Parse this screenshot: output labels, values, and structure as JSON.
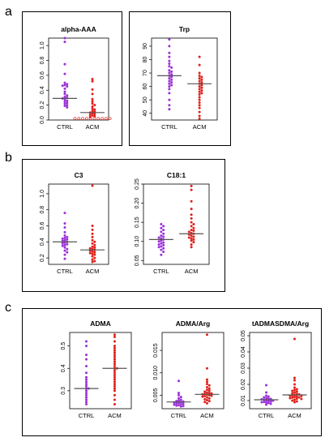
{
  "panels": [
    {
      "letter": "a"
    },
    {
      "letter": "b"
    },
    {
      "letter": "c"
    }
  ],
  "chart_data": [
    {
      "type": "scatter",
      "panel": "a",
      "title": "alpha-AAA",
      "categories": [
        "CTRL",
        "ACM"
      ],
      "ylim": [
        0,
        1.1
      ],
      "yticks": [
        0.0,
        0.2,
        0.4,
        0.6,
        0.8,
        1.0
      ],
      "yticklabels": [
        "0.0",
        "0.2",
        "0.4",
        "0.6",
        "0.8",
        "1.0"
      ],
      "medians": [
        0.29,
        0.1
      ],
      "series": [
        {
          "category": "CTRL",
          "color": "#9b30d9",
          "hollow": false,
          "values": [
            1.1,
            1.05,
            0.75,
            0.62,
            0.5,
            0.48,
            0.47,
            0.46,
            0.45,
            0.42,
            0.38,
            0.35,
            0.33,
            0.31,
            0.3,
            0.29,
            0.28,
            0.26,
            0.25,
            0.23,
            0.22,
            0.2,
            0.19,
            0.17
          ]
        },
        {
          "category": "ACM",
          "color": "#e0201b",
          "hollow": false,
          "values": [
            0.55,
            0.52,
            0.41,
            0.35,
            0.28,
            0.25,
            0.22,
            0.2,
            0.18,
            0.15,
            0.14,
            0.12,
            0.11,
            0.1,
            0.09,
            0.08,
            0.07,
            0.06,
            0.05,
            0.04
          ]
        },
        {
          "category": "ACM",
          "color": "#e0201b",
          "hollow": true,
          "values": [
            0.02,
            0.02,
            0.02,
            0.02,
            0.02,
            0.02,
            0.02,
            0.02,
            0.02,
            0.02
          ]
        }
      ]
    },
    {
      "type": "scatter",
      "panel": "a",
      "title": "Trp",
      "categories": [
        "CTRL",
        "ACM"
      ],
      "ylim": [
        35,
        96
      ],
      "yticks": [
        40,
        50,
        60,
        70,
        80,
        90
      ],
      "yticklabels": [
        "40",
        "50",
        "60",
        "70",
        "80",
        "90"
      ],
      "medians": [
        68,
        62
      ],
      "series": [
        {
          "category": "CTRL",
          "color": "#9b30d9",
          "hollow": false,
          "values": [
            95,
            90,
            85,
            82,
            79,
            77,
            75,
            74,
            72,
            71,
            70,
            69,
            68,
            67,
            66,
            65,
            64,
            63,
            62,
            61,
            60,
            58,
            55,
            50,
            46,
            43
          ]
        },
        {
          "category": "ACM",
          "color": "#e0201b",
          "hollow": false,
          "values": [
            82,
            76,
            70,
            68,
            67,
            66,
            65,
            64,
            63,
            62,
            61,
            60,
            59,
            58,
            57,
            56,
            55,
            54,
            52,
            50,
            48,
            46,
            44,
            41,
            38,
            36
          ]
        }
      ]
    },
    {
      "type": "scatter",
      "panel": "b",
      "title": "C3",
      "categories": [
        "CTRL",
        "ACM"
      ],
      "ylim": [
        0.12,
        1.12
      ],
      "yticks": [
        0.2,
        0.4,
        0.6,
        0.8,
        1.0
      ],
      "yticklabels": [
        "0.2",
        "0.4",
        "0.6",
        "0.8",
        "1.0"
      ],
      "medians": [
        0.4,
        0.3
      ],
      "series": [
        {
          "category": "CTRL",
          "color": "#9b30d9",
          "hollow": false,
          "values": [
            0.76,
            0.63,
            0.58,
            0.52,
            0.48,
            0.46,
            0.45,
            0.44,
            0.43,
            0.42,
            0.41,
            0.4,
            0.39,
            0.38,
            0.37,
            0.36,
            0.35,
            0.33,
            0.31,
            0.29,
            0.27,
            0.24,
            0.19
          ]
        },
        {
          "category": "ACM",
          "color": "#e0201b",
          "hollow": false,
          "values": [
            1.1,
            0.6,
            0.55,
            0.5,
            0.46,
            0.42,
            0.4,
            0.38,
            0.36,
            0.34,
            0.33,
            0.32,
            0.31,
            0.3,
            0.29,
            0.28,
            0.27,
            0.26,
            0.25,
            0.24,
            0.22,
            0.2,
            0.18,
            0.16,
            0.15
          ]
        }
      ]
    },
    {
      "type": "scatter",
      "panel": "b",
      "title": "C18:1",
      "categories": [
        "CTRL",
        "ACM"
      ],
      "ylim": [
        0.04,
        0.25
      ],
      "yticks": [
        0.05,
        0.1,
        0.15,
        0.2,
        0.25
      ],
      "yticklabels": [
        "0.05",
        "0.10",
        "0.15",
        "0.20",
        "0.25"
      ],
      "medians": [
        0.105,
        0.12
      ],
      "series": [
        {
          "category": "CTRL",
          "color": "#9b30d9",
          "hollow": false,
          "values": [
            0.145,
            0.14,
            0.135,
            0.13,
            0.125,
            0.12,
            0.115,
            0.112,
            0.11,
            0.108,
            0.105,
            0.102,
            0.1,
            0.097,
            0.095,
            0.092,
            0.09,
            0.087,
            0.085,
            0.082,
            0.078,
            0.073,
            0.065
          ]
        },
        {
          "category": "ACM",
          "color": "#e0201b",
          "hollow": false,
          "values": [
            0.245,
            0.235,
            0.205,
            0.185,
            0.17,
            0.16,
            0.15,
            0.145,
            0.14,
            0.135,
            0.13,
            0.128,
            0.125,
            0.122,
            0.12,
            0.118,
            0.115,
            0.112,
            0.11,
            0.108,
            0.105,
            0.102,
            0.098,
            0.092,
            0.085
          ]
        }
      ]
    },
    {
      "type": "scatter",
      "panel": "c",
      "title": "ADMA",
      "categories": [
        "CTRL",
        "ACM"
      ],
      "ylim": [
        0.22,
        0.56
      ],
      "yticks": [
        0.3,
        0.4,
        0.5
      ],
      "yticklabels": [
        "0.3",
        "0.4",
        "0.5"
      ],
      "medians": [
        0.31,
        0.4
      ],
      "series": [
        {
          "category": "CTRL",
          "color": "#9b30d9",
          "hollow": false,
          "values": [
            0.52,
            0.5,
            0.46,
            0.44,
            0.41,
            0.38,
            0.36,
            0.35,
            0.34,
            0.33,
            0.32,
            0.31,
            0.31,
            0.3,
            0.29,
            0.28,
            0.27,
            0.26,
            0.25,
            0.24
          ]
        },
        {
          "category": "ACM",
          "color": "#e0201b",
          "hollow": false,
          "values": [
            0.55,
            0.54,
            0.52,
            0.5,
            0.49,
            0.48,
            0.47,
            0.46,
            0.45,
            0.44,
            0.43,
            0.42,
            0.41,
            0.4,
            0.4,
            0.39,
            0.38,
            0.37,
            0.36,
            0.35,
            0.34,
            0.33,
            0.32,
            0.31,
            0.3,
            0.28,
            0.26,
            0.24
          ]
        }
      ]
    },
    {
      "type": "scatter",
      "panel": "c",
      "title": "ADMA/Arg",
      "categories": [
        "CTRL",
        "ACM"
      ],
      "ylim": [
        0.002,
        0.019
      ],
      "yticks": [
        0.005,
        0.01,
        0.015
      ],
      "yticklabels": [
        "0.005",
        "0.010",
        "0.015"
      ],
      "medians": [
        0.0035,
        0.0052
      ],
      "series": [
        {
          "category": "CTRL",
          "color": "#9b30d9",
          "hollow": false,
          "values": [
            0.0082,
            0.0055,
            0.005,
            0.0046,
            0.0043,
            0.004,
            0.0038,
            0.0037,
            0.0036,
            0.0035,
            0.0034,
            0.0033,
            0.0032,
            0.0031,
            0.003,
            0.0029,
            0.0028,
            0.0027,
            0.0026,
            0.0025
          ]
        },
        {
          "category": "ACM",
          "color": "#e0201b",
          "hollow": false,
          "values": [
            0.0185,
            0.011,
            0.0085,
            0.008,
            0.0075,
            0.0072,
            0.0068,
            0.0065,
            0.0062,
            0.006,
            0.0058,
            0.0056,
            0.0055,
            0.0054,
            0.0053,
            0.0052,
            0.0051,
            0.005,
            0.0049,
            0.0048,
            0.0047,
            0.0045,
            0.0043,
            0.0041,
            0.0039,
            0.0037,
            0.0035,
            0.0032
          ]
        }
      ]
    },
    {
      "type": "scatter",
      "panel": "c",
      "title": "tADMASDMA/Arg",
      "categories": [
        "CTRL",
        "ACM"
      ],
      "ylim": [
        0.005,
        0.052
      ],
      "yticks": [
        0.01,
        0.02,
        0.03,
        0.04,
        0.05
      ],
      "yticklabels": [
        "0.01",
        "0.02",
        "0.03",
        "0.04",
        "0.05"
      ],
      "medians": [
        0.0105,
        0.0135
      ],
      "series": [
        {
          "category": "CTRL",
          "color": "#9b30d9",
          "hollow": false,
          "values": [
            0.0195,
            0.015,
            0.013,
            0.0125,
            0.012,
            0.0115,
            0.0112,
            0.011,
            0.0108,
            0.0105,
            0.0102,
            0.01,
            0.0098,
            0.0095,
            0.0092,
            0.009,
            0.0088,
            0.0085,
            0.008,
            0.0075
          ]
        },
        {
          "category": "ACM",
          "color": "#e0201b",
          "hollow": false,
          "values": [
            0.048,
            0.024,
            0.0225,
            0.02,
            0.018,
            0.017,
            0.0165,
            0.016,
            0.0155,
            0.015,
            0.0145,
            0.014,
            0.0138,
            0.0135,
            0.0132,
            0.013,
            0.0128,
            0.0125,
            0.0122,
            0.012,
            0.0118,
            0.0115,
            0.0112,
            0.011,
            0.0105,
            0.01,
            0.0095,
            0.009
          ]
        }
      ]
    }
  ]
}
